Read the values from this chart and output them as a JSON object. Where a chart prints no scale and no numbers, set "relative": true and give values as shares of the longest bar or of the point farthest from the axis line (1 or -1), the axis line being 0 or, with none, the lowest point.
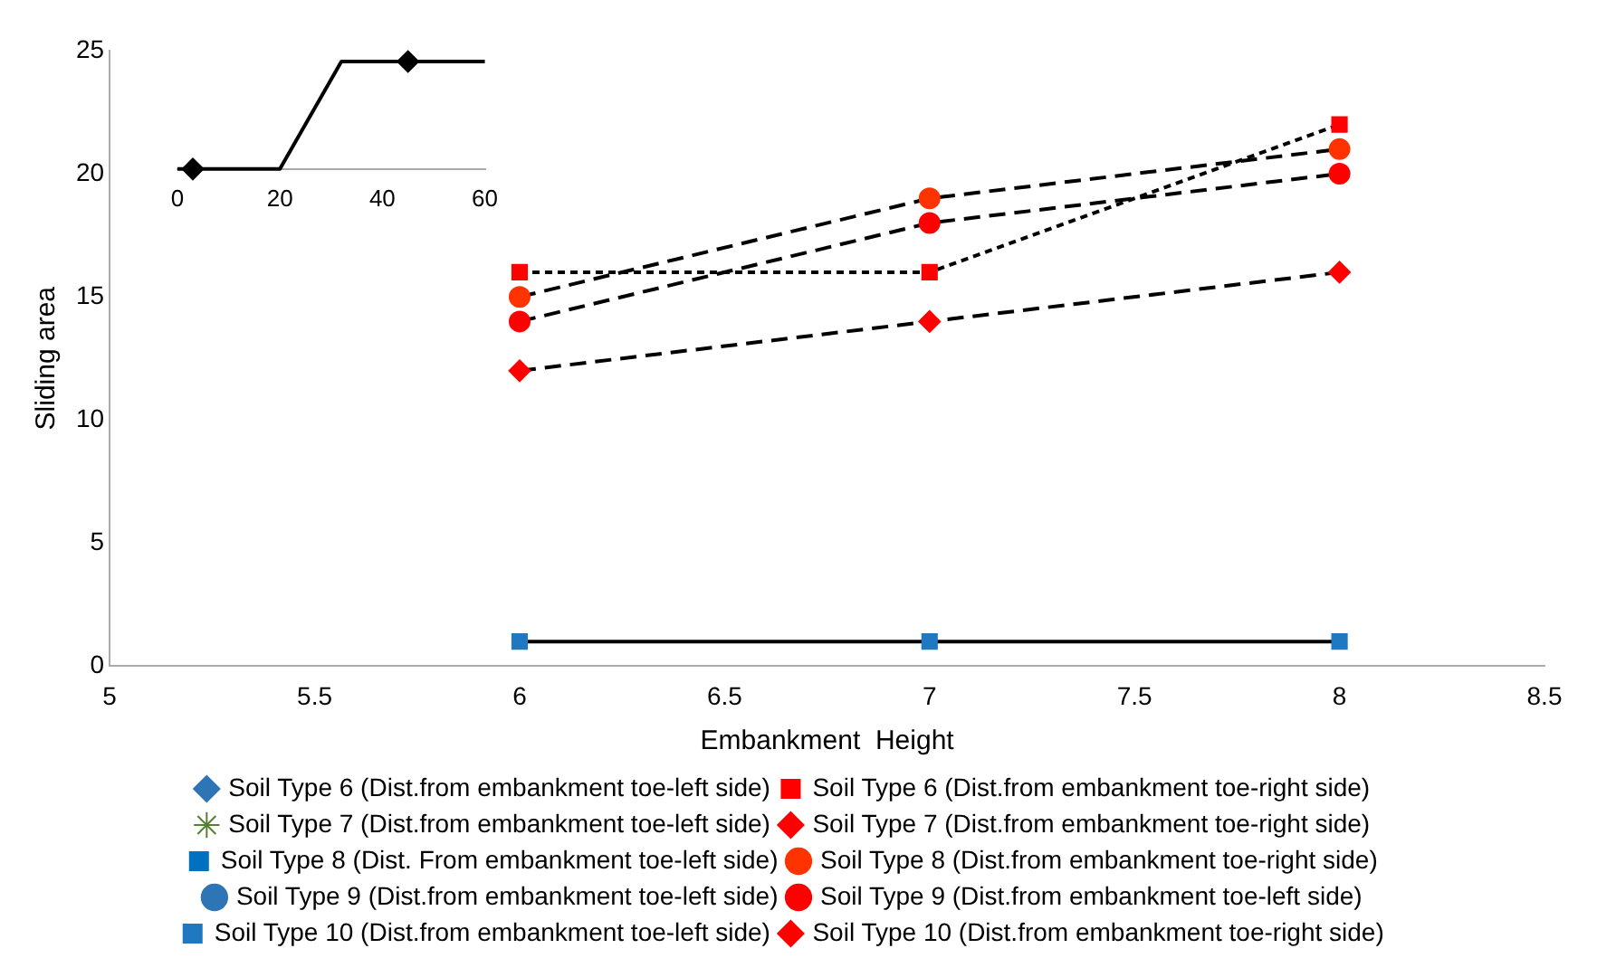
{
  "chart_data": [
    {
      "type": "line",
      "xlabel": "Embankment  Height",
      "ylabel": "Sliding area",
      "x": [
        6,
        7,
        8
      ],
      "xlim": [
        5,
        8.5
      ],
      "xticks": [
        5,
        5.5,
        6,
        6.5,
        7,
        7.5,
        8,
        8.5
      ],
      "ylim": [
        0,
        25
      ],
      "yticks": [
        0,
        5,
        10,
        15,
        20,
        25
      ],
      "grid": false,
      "legend": "bottom",
      "series": [
        {
          "name": "Soil Type 6 (Dist.from embankment toe-left side)",
          "color": "#2e75b6",
          "marker": "diamond",
          "line_style": "dotted",
          "values": [
            null,
            null,
            null
          ]
        },
        {
          "name": "Soil Type 6 (Dist.from embankment toe-right side)",
          "color": "#000000",
          "colors": [
            "#ff0000",
            "#ff0000",
            "#ff0000"
          ],
          "marker": "square",
          "line_style": "dotted",
          "values": [
            16,
            16,
            22
          ]
        },
        {
          "name": "Soil Type 7 (Dist.from embankment toe-left side)",
          "color": "#548235",
          "marker": "star",
          "line_style": "dashed",
          "values": [
            null,
            null,
            null
          ]
        },
        {
          "name": "Soil Type 7 (Dist.from embankment toe-right side)",
          "color": "#ff0000",
          "marker": "diamond",
          "line_style": "dashed",
          "values": [
            null,
            null,
            null
          ]
        },
        {
          "name": "Soil Type 8 (Dist. From embankment toe-left side)",
          "color": "#0070c0",
          "marker": "square",
          "line_style": "dashed",
          "values": [
            null,
            null,
            null
          ]
        },
        {
          "name": "Soil Type 8 (Dist.from embankment toe-right side)",
          "color": "#000000",
          "colors": [
            "#ff3300",
            "#ff3300",
            "#ff3300"
          ],
          "marker": "circle",
          "line_style": "dashed",
          "values": [
            15,
            19,
            21
          ]
        },
        {
          "name": "Soil Type 9 (Dist.from embankment toe-left side)",
          "color": "#2e75b6",
          "marker": "circle",
          "line_style": "dashed",
          "values": [
            null,
            null,
            null
          ]
        },
        {
          "name": "Soil Type 9 (Dist.from embankment toe-left side)",
          "color": "#000000",
          "colors": [
            "#ff0000",
            "#ff0000",
            "#ff0000"
          ],
          "marker": "circle",
          "line_style": "dashed",
          "values": [
            14,
            18,
            20
          ]
        },
        {
          "name": "Soil Type 10 (Dist.from embankment toe-left side)",
          "color": "#000000",
          "colors": [
            "#1f78c0",
            "#1f78c0",
            "#1f78c0"
          ],
          "marker": "square",
          "line_style": "solid",
          "values": [
            1,
            1,
            1
          ]
        },
        {
          "name": "Soil Type 10 (Dist.from embankment toe-right side)",
          "color": "#000000",
          "colors": [
            "#ff0000",
            "#ff0000",
            "#ff0000"
          ],
          "marker": "diamond",
          "line_style": "dashed",
          "values": [
            12,
            14,
            16
          ]
        }
      ]
    },
    {
      "type": "line",
      "relative": true,
      "tick_labels": "x",
      "xlim": [
        0,
        60
      ],
      "xticks": [
        0,
        20,
        40,
        60
      ],
      "grid": false,
      "legend": false,
      "series": [
        {
          "type": "line",
          "color": "#000000",
          "marker": "none",
          "line_style": "solid",
          "x": [
            0,
            20,
            32,
            60
          ],
          "values": [
            0,
            0,
            1,
            1
          ]
        },
        {
          "type": "scatter",
          "color": "#000000",
          "marker": "diamond",
          "x": [
            3,
            45
          ],
          "values": [
            0,
            1
          ]
        }
      ]
    }
  ]
}
